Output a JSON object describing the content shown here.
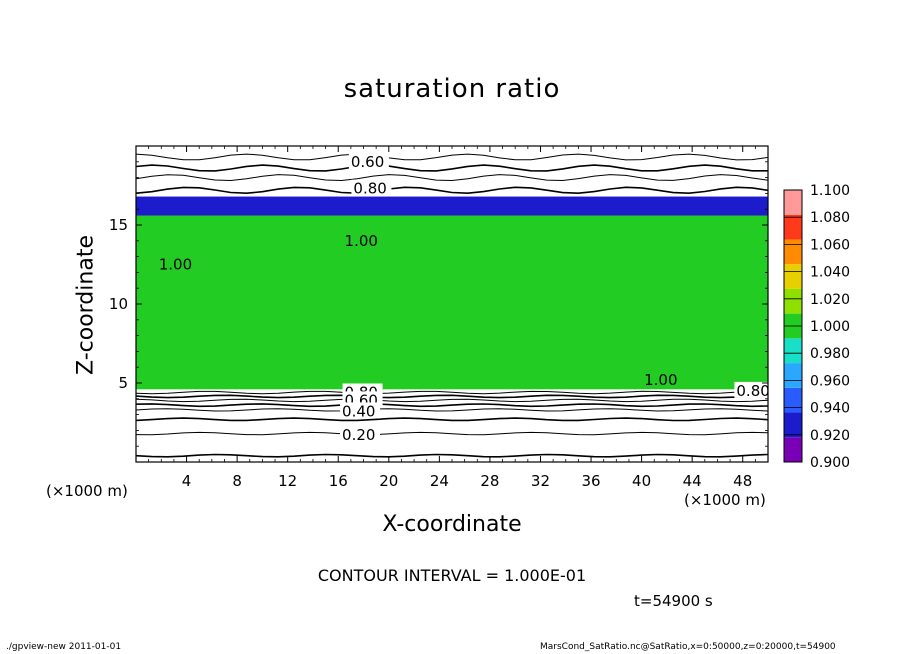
{
  "title": "saturation ratio",
  "xlabel": "X-coordinate",
  "ylabel": "Z-coordinate",
  "x_unit_left": "(×1000 m)",
  "x_unit_right": "(×1000 m)",
  "contour_interval": "CONTOUR INTERVAL = 1.000E-01",
  "time_label": "t=54900 s",
  "footer_left": "./gpview-new   2011-01-01",
  "footer_right": "MarsCond_SatRatio.nc@SatRatio,x=0:50000,z=0:20000,t=54900",
  "colors": {
    "dominant_fill": "#22cc22",
    "dry_band": "#2a5bff",
    "axis": "#000000"
  },
  "chart_data": {
    "type": "heatmap",
    "title": "saturation ratio",
    "xlabel": "X-coordinate",
    "ylabel": "Z-coordinate",
    "xlim": [
      0,
      50
    ],
    "ylim": [
      0,
      20
    ],
    "x_ticks": [
      "4",
      "8",
      "12",
      "16",
      "20",
      "24",
      "28",
      "32",
      "36",
      "40",
      "44",
      "48"
    ],
    "y_ticks": [
      "5",
      "10",
      "15"
    ],
    "colorbar": {
      "levels": [
        "0.900",
        "0.920",
        "0.940",
        "0.960",
        "0.980",
        "1.000",
        "1.020",
        "1.040",
        "1.060",
        "1.080",
        "1.100"
      ],
      "colors": [
        "#7a00b8",
        "#1c1ccc",
        "#2a5bff",
        "#2aa8ff",
        "#18e0c8",
        "#22cc22",
        "#8ee000",
        "#e8d000",
        "#ff8c00",
        "#ff3a1a",
        "#ff9a9a"
      ]
    },
    "fill_regions": [
      {
        "z_bottom": 4.6,
        "z_top": 15.6,
        "value": 1.0
      },
      {
        "z_bottom": 15.6,
        "z_top": 16.8,
        "value": 0.93
      }
    ],
    "contour_labels": [
      {
        "text": "0.60",
        "x": 17.0,
        "z": 19.0
      },
      {
        "text": "0.80",
        "x": 17.2,
        "z": 17.3
      },
      {
        "text": "1.00",
        "x": 1.8,
        "z": 12.5
      },
      {
        "text": "1.00",
        "x": 16.5,
        "z": 14.0
      },
      {
        "text": "1.00",
        "x": 40.2,
        "z": 5.2
      },
      {
        "text": "0.80",
        "x": 16.5,
        "z": 4.4
      },
      {
        "text": "0.60",
        "x": 16.5,
        "z": 3.9
      },
      {
        "text": "0.40",
        "x": 16.3,
        "z": 3.2
      },
      {
        "text": "0.20",
        "x": 16.3,
        "z": 1.7
      },
      {
        "text": "0.80",
        "x": 47.5,
        "z": 4.5
      }
    ],
    "contour_levels_z": [
      0.4,
      1.8,
      2.7,
      3.3,
      3.6,
      3.9,
      4.15,
      4.4,
      17.2,
      18.0,
      18.6,
      19.3
    ]
  }
}
